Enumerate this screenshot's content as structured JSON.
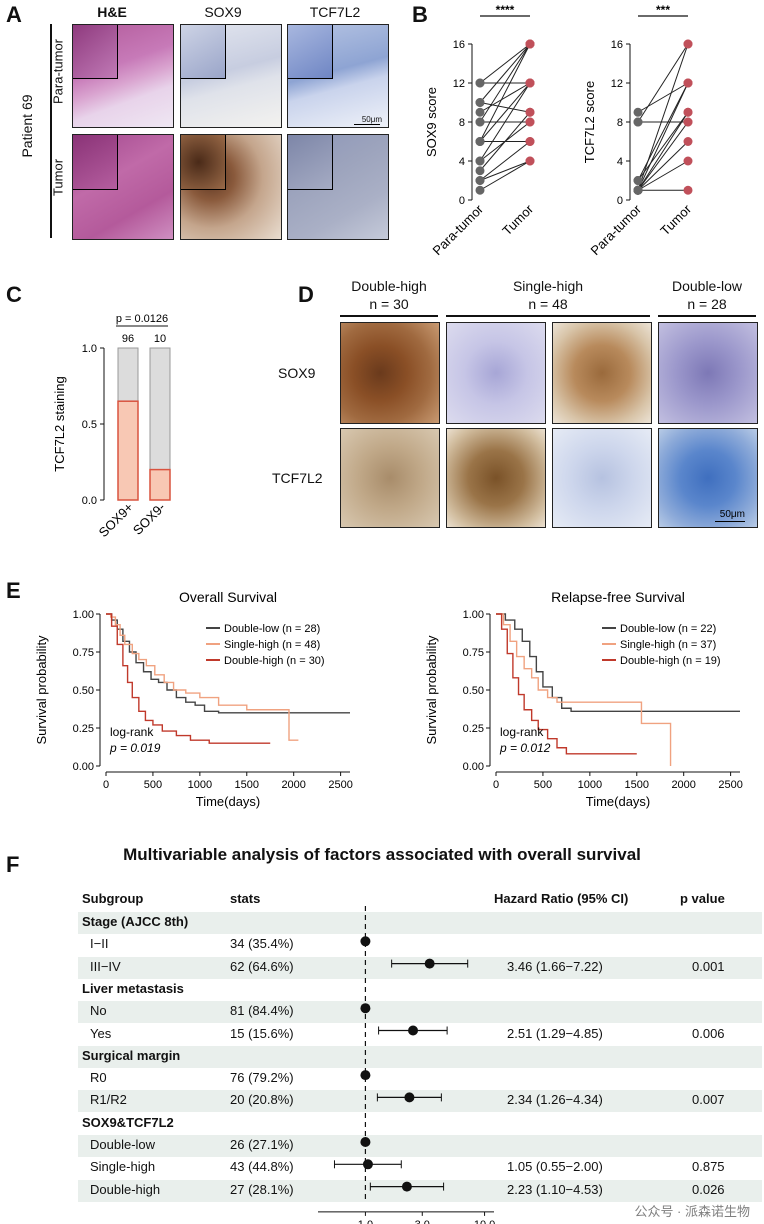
{
  "panelA": {
    "letter": "A",
    "columns": [
      "H&E",
      "SOX9",
      "TCF7L2"
    ],
    "patient": "Patient 69",
    "rows": [
      "Para-tumor",
      "Tumor"
    ],
    "scale": "50μm"
  },
  "panelB": {
    "letter": "B",
    "sig1": "****",
    "sig2": "***"
  },
  "panelC": {
    "letter": "C",
    "pvalue": "p = 0.0126",
    "counts": [
      "96",
      "10"
    ]
  },
  "panelD": {
    "letter": "D",
    "groups": [
      {
        "name": "Double-high",
        "n": "n = 30"
      },
      {
        "name": "Single-high",
        "n": "n = 48"
      },
      {
        "name": "Double-low",
        "n": "n = 28"
      }
    ],
    "rows": [
      "SOX9",
      "TCF7L2"
    ],
    "scale": "50μm"
  },
  "panelE": {
    "letter": "E"
  },
  "panelF": {
    "letter": "F",
    "title": "Multivariable analysis of factors associated with overall survival",
    "headers": {
      "subgroup": "Subgroup",
      "stats": "stats",
      "hr": "Hazard Ratio (95% CI)",
      "p": "p value"
    },
    "rows": [
      {
        "label": "Stage (AJCC 8th)",
        "header": true
      },
      {
        "label": "I−II",
        "stats": "34 (35.4%)",
        "hr": "",
        "p": "",
        "est": 1.0
      },
      {
        "label": "III−IV",
        "stats": "62 (64.6%)",
        "hr": "3.46 (1.66−7.22)",
        "p": "0.001",
        "est": 3.46,
        "lo": 1.66,
        "hi": 7.22
      },
      {
        "label": "Liver metastasis",
        "header": true
      },
      {
        "label": "No",
        "stats": "81 (84.4%)",
        "hr": "",
        "p": "",
        "est": 1.0
      },
      {
        "label": "Yes",
        "stats": "15 (15.6%)",
        "hr": "2.51 (1.29−4.85)",
        "p": "0.006",
        "est": 2.51,
        "lo": 1.29,
        "hi": 4.85
      },
      {
        "label": "Surgical margin",
        "header": true
      },
      {
        "label": "R0",
        "stats": "76 (79.2%)",
        "hr": "",
        "p": "",
        "est": 1.0
      },
      {
        "label": "R1/R2",
        "stats": "20 (20.8%)",
        "hr": "2.34 (1.26−4.34)",
        "p": "0.007",
        "est": 2.34,
        "lo": 1.26,
        "hi": 4.34
      },
      {
        "label": "SOX9&TCF7L2",
        "header": true
      },
      {
        "label": "Double-low",
        "stats": "26 (27.1%)",
        "hr": "",
        "p": "",
        "est": 1.0
      },
      {
        "label": "Single-high",
        "stats": "43 (44.8%)",
        "hr": "1.05 (0.55−2.00)",
        "p": "0.875",
        "est": 1.05,
        "lo": 0.55,
        "hi": 2.0
      },
      {
        "label": "Double-high",
        "stats": "27 (28.1%)",
        "hr": "2.23 (1.10−4.53)",
        "p": "0.026",
        "est": 2.23,
        "lo": 1.1,
        "hi": 4.53
      }
    ],
    "axis_ticks": [
      "1.0",
      "3.0",
      "10.0"
    ]
  },
  "watermark": "公众号 · 派森诺生物",
  "chart_data": [
    {
      "type": "scatter",
      "panel": "B-left",
      "ylabel": "SOX9 score",
      "categories": [
        "Para-tumor",
        "Tumor"
      ],
      "ylim": [
        0,
        16
      ],
      "yticks": [
        0,
        4,
        8,
        12,
        16
      ],
      "pairs": [
        [
          12,
          16
        ],
        [
          12,
          12
        ],
        [
          10,
          16
        ],
        [
          10,
          9
        ],
        [
          9,
          12
        ],
        [
          8,
          16
        ],
        [
          8,
          8
        ],
        [
          6,
          12
        ],
        [
          6,
          6
        ],
        [
          4,
          8
        ],
        [
          4,
          12
        ],
        [
          3,
          9
        ],
        [
          2,
          6
        ],
        [
          2,
          4
        ],
        [
          1,
          4
        ],
        [
          6,
          16
        ]
      ]
    },
    {
      "type": "scatter",
      "panel": "B-right",
      "ylabel": "TCF7L2 score",
      "categories": [
        "Para-tumor",
        "Tumor"
      ],
      "ylim": [
        0,
        16
      ],
      "yticks": [
        0,
        4,
        8,
        12,
        16
      ],
      "pairs": [
        [
          9,
          12
        ],
        [
          8,
          8
        ],
        [
          8,
          16
        ],
        [
          2,
          12
        ],
        [
          2,
          9
        ],
        [
          1,
          8
        ],
        [
          1,
          6
        ],
        [
          1,
          4
        ],
        [
          1,
          1
        ],
        [
          1,
          12
        ],
        [
          1,
          9
        ],
        [
          1,
          16
        ]
      ]
    },
    {
      "type": "bar",
      "panel": "C",
      "ylabel": "TCF7L2 staining",
      "categories": [
        "SOX9+",
        "SOX9-"
      ],
      "values": [
        0.65,
        0.2
      ],
      "ylim": [
        0,
        1.0
      ],
      "yticks": [
        "0.0",
        "0.5",
        "1.0"
      ]
    },
    {
      "type": "line",
      "panel": "E-left",
      "title": "Overall Survival",
      "xlabel": "Time(days)",
      "ylabel": "Survival probability",
      "xlim": [
        0,
        2600
      ],
      "ylim": [
        0,
        1
      ],
      "xticks": [
        0,
        500,
        1000,
        1500,
        2000,
        2500
      ],
      "yticks": [
        "0.00",
        "0.25",
        "0.50",
        "0.75",
        "1.00"
      ],
      "annotation": [
        "log-rank",
        "p = 0.019"
      ],
      "series": [
        {
          "name": "Double-low (n = 28)",
          "color": "#444444",
          "x": [
            0,
            60,
            120,
            180,
            250,
            320,
            400,
            480,
            560,
            650,
            750,
            850,
            950,
            1050,
            1200,
            1500,
            2000,
            2600
          ],
          "y": [
            1,
            0.96,
            0.9,
            0.82,
            0.75,
            0.68,
            0.62,
            0.57,
            0.55,
            0.5,
            0.45,
            0.42,
            0.4,
            0.36,
            0.35,
            0.35,
            0.35,
            0.35
          ]
        },
        {
          "name": "Single-high (n = 48)",
          "color": "#f0a280",
          "x": [
            0,
            50,
            100,
            150,
            200,
            280,
            350,
            430,
            520,
            620,
            720,
            850,
            1000,
            1200,
            1500,
            1900,
            1950,
            2050
          ],
          "y": [
            1,
            0.98,
            0.93,
            0.86,
            0.8,
            0.74,
            0.7,
            0.66,
            0.6,
            0.55,
            0.5,
            0.48,
            0.45,
            0.4,
            0.37,
            0.37,
            0.17,
            0.17
          ]
        },
        {
          "name": "Double-high (n = 30)",
          "color": "#c0392b",
          "x": [
            0,
            60,
            120,
            180,
            230,
            280,
            350,
            420,
            500,
            600,
            750,
            900,
            1100,
            1300,
            1600,
            1750
          ],
          "y": [
            1,
            0.92,
            0.8,
            0.66,
            0.55,
            0.45,
            0.36,
            0.3,
            0.27,
            0.23,
            0.2,
            0.17,
            0.15,
            0.15,
            0.15,
            0.15
          ]
        }
      ]
    },
    {
      "type": "line",
      "panel": "E-right",
      "title": "Relapse-free Survival",
      "xlabel": "Time(days)",
      "ylabel": "Survival probability",
      "xlim": [
        0,
        2600
      ],
      "ylim": [
        0,
        1
      ],
      "xticks": [
        0,
        500,
        1000,
        1500,
        2000,
        2500
      ],
      "yticks": [
        "0.00",
        "0.25",
        "0.50",
        "0.75",
        "1.00"
      ],
      "annotation": [
        "log-rank",
        "p = 0.012"
      ],
      "series": [
        {
          "name": "Double-low (n = 22)",
          "color": "#444444",
          "x": [
            0,
            100,
            200,
            280,
            360,
            430,
            500,
            600,
            700,
            800,
            1000,
            1500,
            2600
          ],
          "y": [
            1,
            0.96,
            0.9,
            0.82,
            0.72,
            0.62,
            0.52,
            0.45,
            0.38,
            0.36,
            0.36,
            0.36,
            0.36
          ]
        },
        {
          "name": "Single-high (n = 37)",
          "color": "#f0a280",
          "x": [
            0,
            80,
            150,
            220,
            300,
            380,
            450,
            550,
            650,
            800,
            1000,
            1500,
            1550,
            1850,
            1860
          ],
          "y": [
            1,
            0.93,
            0.82,
            0.72,
            0.64,
            0.58,
            0.5,
            0.45,
            0.42,
            0.42,
            0.42,
            0.42,
            0.28,
            0.28,
            0.0
          ]
        },
        {
          "name": "Double-high (n = 19)",
          "color": "#c0392b",
          "x": [
            0,
            60,
            120,
            180,
            240,
            300,
            380,
            450,
            550,
            650,
            750,
            900,
            1200,
            1500
          ],
          "y": [
            1,
            0.9,
            0.74,
            0.58,
            0.47,
            0.37,
            0.3,
            0.24,
            0.18,
            0.12,
            0.08,
            0.08,
            0.08,
            0.08
          ]
        }
      ]
    }
  ]
}
